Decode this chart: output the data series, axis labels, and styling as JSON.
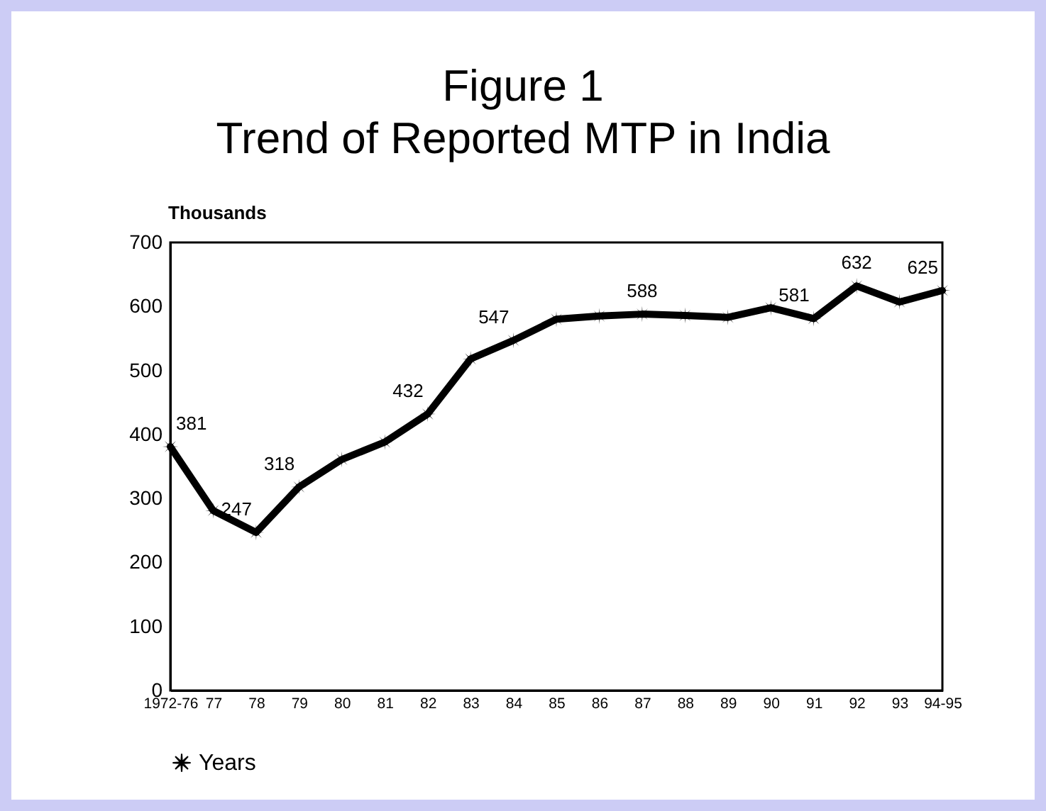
{
  "chart_data": {
    "type": "line",
    "title": "Figure 1",
    "subtitle": "Trend of Reported MTP in India",
    "ylabel": "Thousands",
    "categories": [
      "1972-76",
      "77",
      "78",
      "79",
      "80",
      "81",
      "82",
      "83",
      "84",
      "85",
      "86",
      "87",
      "88",
      "89",
      "90",
      "91",
      "92",
      "93",
      "94-95"
    ],
    "series": [
      {
        "name": "Years",
        "color": "#000000",
        "values": [
          381,
          281,
          247,
          318,
          361,
          388,
          432,
          518,
          547,
          580,
          585,
          588,
          586,
          583,
          598,
          581,
          632,
          607,
          625
        ],
        "value_labels": [
          "381",
          null,
          "247",
          "318",
          null,
          null,
          "432",
          null,
          "547",
          null,
          null,
          "588",
          null,
          null,
          null,
          "581",
          "632",
          null,
          "625"
        ]
      }
    ],
    "ylim": [
      0,
      700
    ],
    "yticks": [
      0,
      100,
      200,
      300,
      400,
      500,
      600,
      700
    ],
    "grid": false,
    "legend": "bottom",
    "marker": "star",
    "line_style": "solid"
  }
}
